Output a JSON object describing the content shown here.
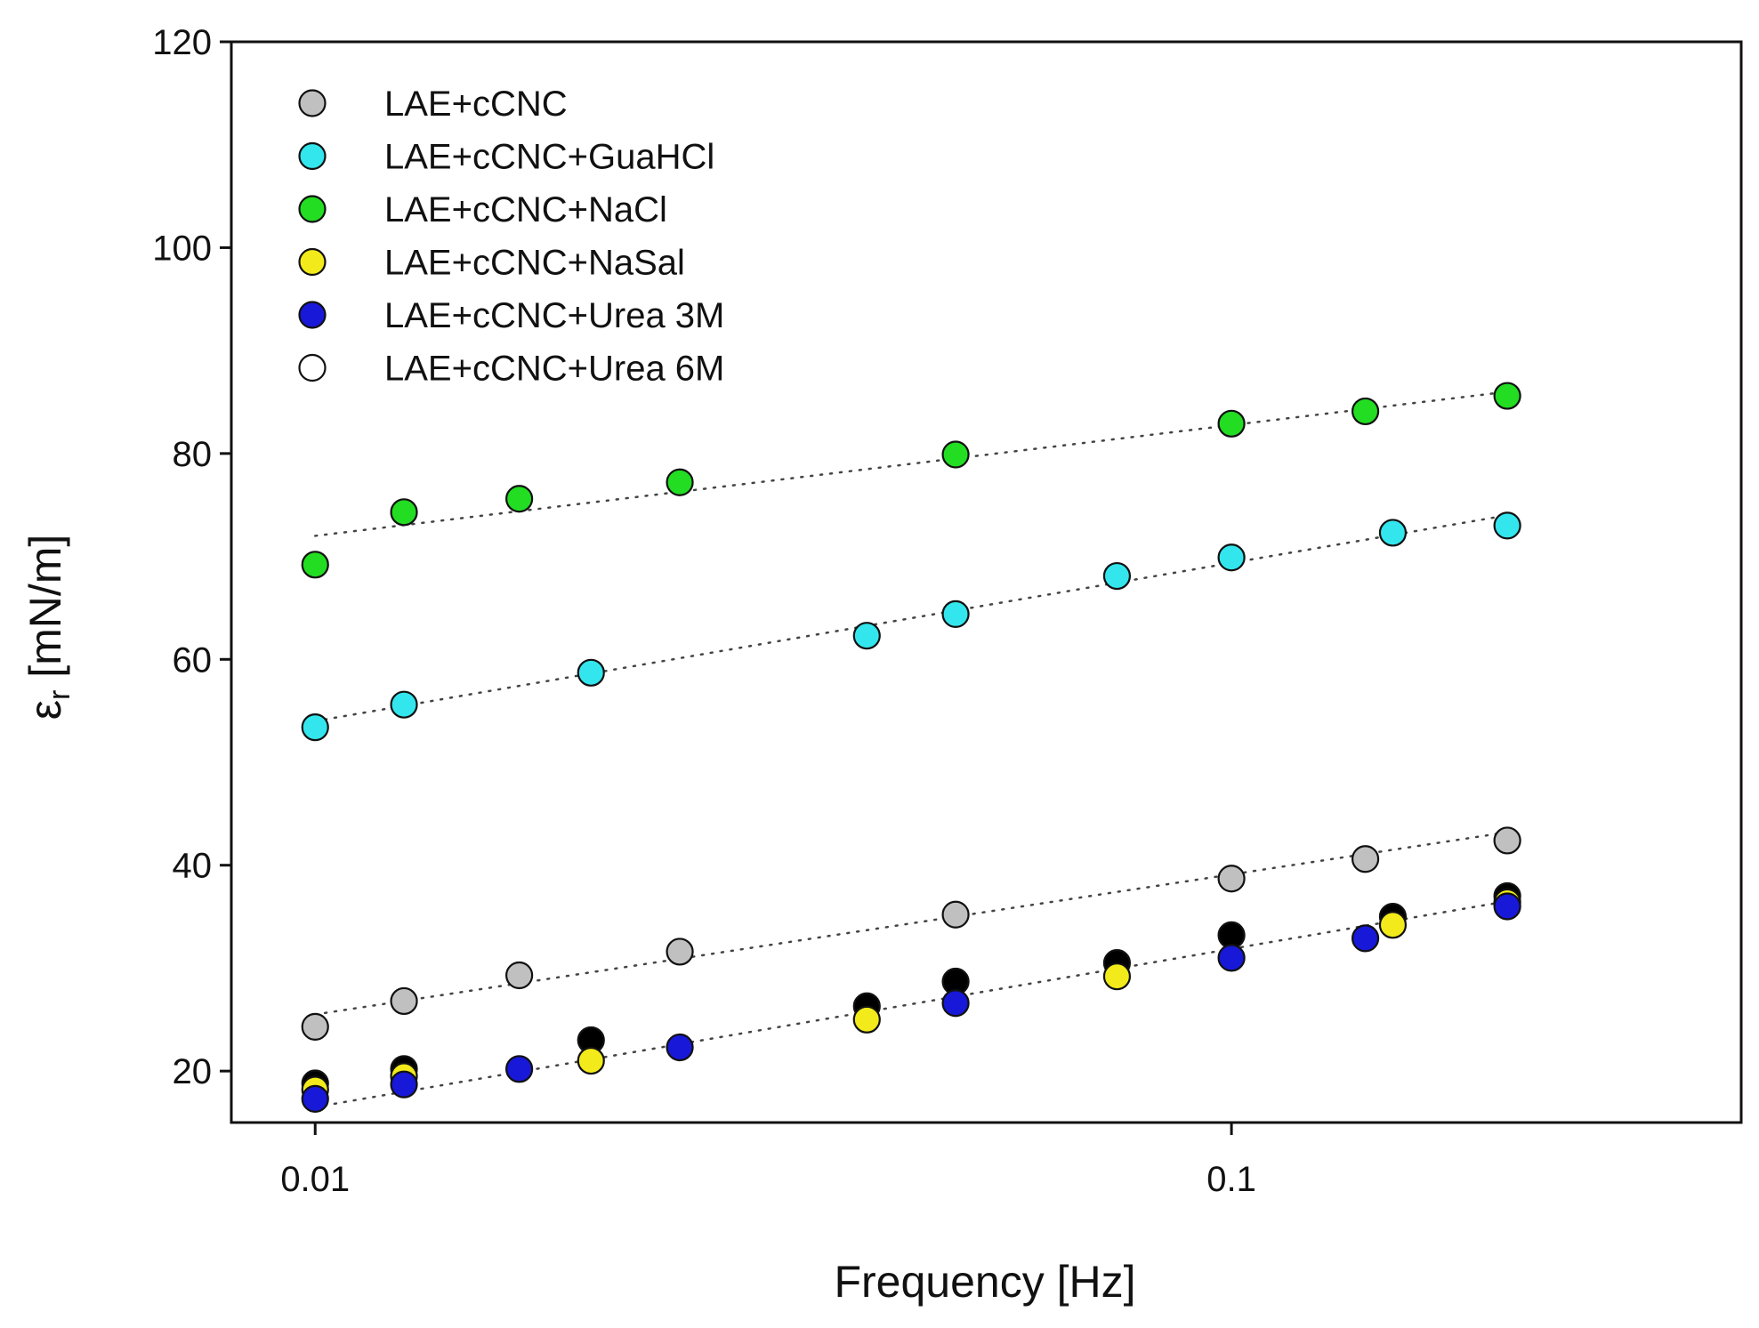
{
  "chart_data": {
    "type": "scatter",
    "xscale": "log",
    "xlabel": "Frequency [Hz]",
    "ylabel_main": "ε",
    "ylabel_sub": "r",
    "ylabel_units": " [mN/m]",
    "xlim": [
      0.0081,
      0.36
    ],
    "ylim": [
      15,
      120
    ],
    "xticks": [
      {
        "value": 0.01,
        "label": "0.01"
      },
      {
        "value": 0.1,
        "label": "0.1"
      }
    ],
    "yticks": [
      {
        "value": 20,
        "label": "20"
      },
      {
        "value": 40,
        "label": "40"
      },
      {
        "value": 60,
        "label": "60"
      },
      {
        "value": 80,
        "label": "80"
      },
      {
        "value": 100,
        "label": "100"
      },
      {
        "value": 120,
        "label": "120"
      }
    ],
    "legend_position": "top-left",
    "series": [
      {
        "name": "LAE+cCNC",
        "color": "#c0c0c0",
        "legend": true,
        "points": [
          [
            0.01,
            24.3
          ],
          [
            0.0125,
            26.8
          ],
          [
            0.0167,
            29.3
          ],
          [
            0.025,
            31.6
          ],
          [
            0.05,
            35.2
          ],
          [
            0.1,
            38.7
          ],
          [
            0.14,
            40.6
          ],
          [
            0.2,
            42.4
          ]
        ]
      },
      {
        "name": "LAE+cCNC+GuaHCl",
        "color": "#33e6ee",
        "legend": true,
        "points": [
          [
            0.01,
            53.4
          ],
          [
            0.0125,
            55.6
          ],
          [
            0.02,
            58.7
          ],
          [
            0.04,
            62.3
          ],
          [
            0.05,
            64.4
          ],
          [
            0.075,
            68.1
          ],
          [
            0.1,
            69.9
          ],
          [
            0.15,
            72.3
          ],
          [
            0.2,
            73.0
          ]
        ]
      },
      {
        "name": "LAE+cCNC+NaCl",
        "color": "#22dd22",
        "legend": true,
        "points": [
          [
            0.01,
            69.2
          ],
          [
            0.0125,
            74.3
          ],
          [
            0.0167,
            75.6
          ],
          [
            0.025,
            77.2
          ],
          [
            0.05,
            79.9
          ],
          [
            0.1,
            82.9
          ],
          [
            0.14,
            84.1
          ],
          [
            0.2,
            85.6
          ]
        ]
      },
      {
        "name": "LAE+cCNC+NaSal",
        "color": "#f2ea1a",
        "legend": true,
        "points": [
          [
            0.01,
            18.2
          ],
          [
            0.0125,
            19.5
          ],
          [
            0.02,
            21.0
          ],
          [
            0.04,
            25.0
          ],
          [
            0.075,
            29.2
          ],
          [
            0.15,
            34.2
          ],
          [
            0.2,
            36.4
          ]
        ]
      },
      {
        "name": "LAE+cCNC+Urea 3M",
        "color": "#1818d8",
        "legend": true,
        "points": [
          [
            0.01,
            17.3
          ],
          [
            0.0125,
            18.7
          ],
          [
            0.0167,
            20.2
          ],
          [
            0.025,
            22.3
          ],
          [
            0.05,
            26.6
          ],
          [
            0.1,
            31.0
          ],
          [
            0.14,
            32.9
          ],
          [
            0.2,
            36.0
          ]
        ]
      },
      {
        "name": "LAE+cCNC+Urea 6M",
        "color": "#ffffff",
        "legend": true,
        "points": []
      },
      {
        "name": "LAE+cCNC+Urea 6M (filled)",
        "color": "#000000",
        "legend": false,
        "points": [
          [
            0.01,
            18.8
          ],
          [
            0.0125,
            20.2
          ],
          [
            0.02,
            23.0
          ],
          [
            0.04,
            26.3
          ],
          [
            0.05,
            28.7
          ],
          [
            0.075,
            30.5
          ],
          [
            0.1,
            33.2
          ],
          [
            0.15,
            35.0
          ],
          [
            0.2,
            37.0
          ]
        ]
      }
    ],
    "trend_lines": [
      {
        "name": "NaCl-trend",
        "x": [
          0.01,
          0.2
        ],
        "y": [
          72.0,
          86.0
        ]
      },
      {
        "name": "GuaHCl-trend",
        "x": [
          0.01,
          0.2
        ],
        "y": [
          54.0,
          74.0
        ]
      },
      {
        "name": "cCNC-trend",
        "x": [
          0.01,
          0.2
        ],
        "y": [
          25.5,
          43.2
        ]
      },
      {
        "name": "lower-trend",
        "x": [
          0.01,
          0.2
        ],
        "y": [
          16.5,
          36.5
        ]
      }
    ]
  }
}
